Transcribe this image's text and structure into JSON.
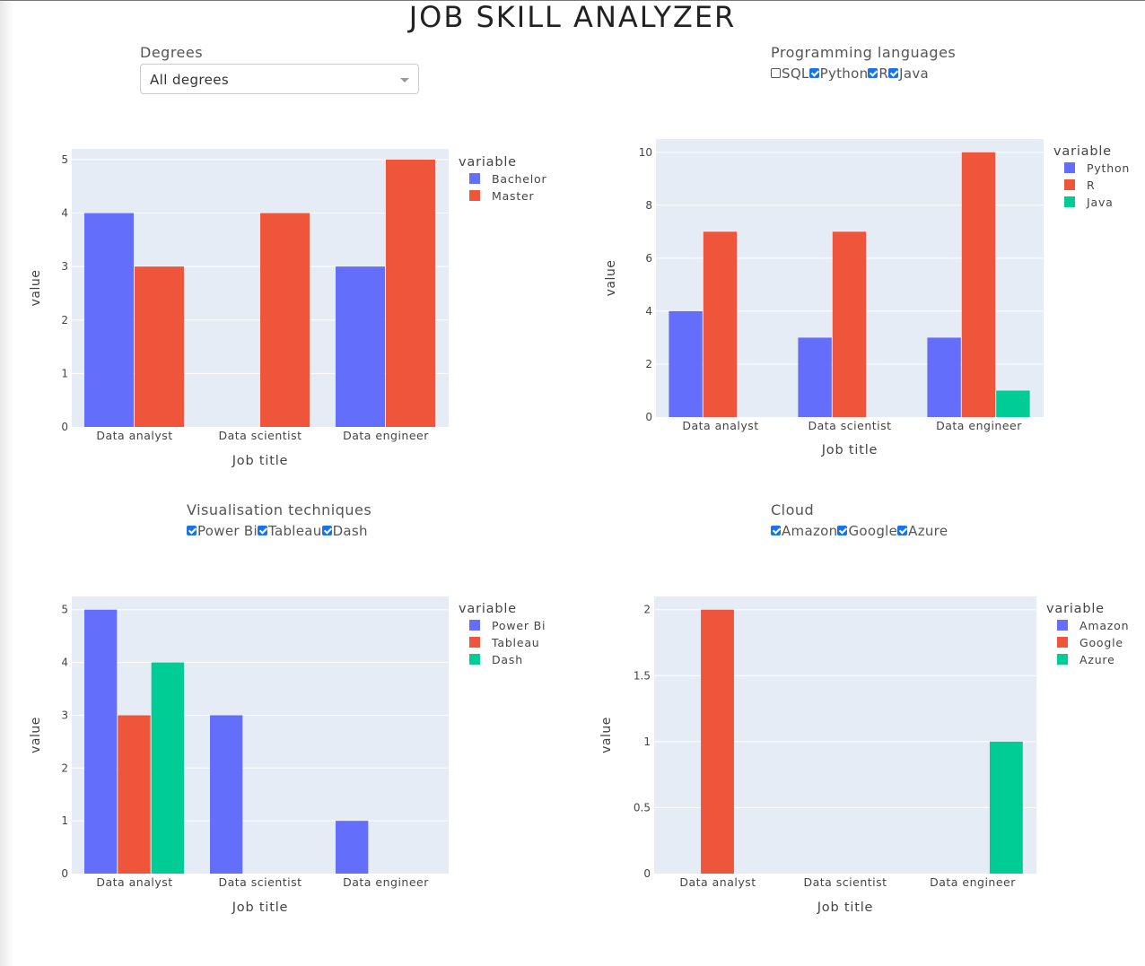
{
  "app": {
    "title": "JOB SKILL ANALYZER"
  },
  "controls": {
    "degrees": {
      "label": "Degrees",
      "value": "All degrees"
    },
    "languages": {
      "label": "Programming languages",
      "options": [
        {
          "label": "SQL",
          "checked": false
        },
        {
          "label": "Python",
          "checked": true
        },
        {
          "label": "R",
          "checked": true
        },
        {
          "label": "Java",
          "checked": true
        }
      ]
    },
    "visualisation": {
      "label": "Visualisation techniques",
      "options": [
        {
          "label": "Power Bi",
          "checked": true
        },
        {
          "label": "Tableau",
          "checked": true
        },
        {
          "label": "Dash",
          "checked": true
        }
      ]
    },
    "cloud": {
      "label": "Cloud",
      "options": [
        {
          "label": "Amazon",
          "checked": true
        },
        {
          "label": "Google",
          "checked": true
        },
        {
          "label": "Azure",
          "checked": true
        }
      ]
    }
  },
  "colors": {
    "blue": "#636efa",
    "red": "#ef553b",
    "green": "#00cc96",
    "plot_bg": "#e5ecf6",
    "grid": "#ffffff"
  },
  "chart_data": [
    {
      "type": "bar",
      "categories": [
        "Data analyst",
        "Data scientist",
        "Data engineer"
      ],
      "series": [
        {
          "name": "Bachelor",
          "values": [
            4,
            0,
            3
          ]
        },
        {
          "name": "Master",
          "values": [
            3,
            4,
            5
          ]
        }
      ],
      "xlabel": "Job title",
      "ylabel": "value",
      "legend_title": "variable",
      "ylim": [
        0,
        5.2
      ],
      "yticks": [
        0,
        1,
        2,
        3,
        4,
        5
      ],
      "grid": true,
      "legend": "right"
    },
    {
      "type": "bar",
      "categories": [
        "Data analyst",
        "Data scientist",
        "Data engineer"
      ],
      "series": [
        {
          "name": "Python",
          "values": [
            4,
            3,
            3
          ]
        },
        {
          "name": "R",
          "values": [
            7,
            7,
            10
          ]
        },
        {
          "name": "Java",
          "values": [
            0,
            0,
            1
          ]
        }
      ],
      "xlabel": "Job title",
      "ylabel": "value",
      "legend_title": "variable",
      "ylim": [
        0,
        10.5
      ],
      "yticks": [
        0,
        2,
        4,
        6,
        8,
        10
      ],
      "grid": true,
      "legend": "right"
    },
    {
      "type": "bar",
      "categories": [
        "Data analyst",
        "Data scientist",
        "Data engineer"
      ],
      "series": [
        {
          "name": "Power Bi",
          "values": [
            5,
            3,
            1
          ]
        },
        {
          "name": "Tableau",
          "values": [
            3,
            0,
            0
          ]
        },
        {
          "name": "Dash",
          "values": [
            4,
            0,
            0
          ]
        }
      ],
      "xlabel": "Job title",
      "ylabel": "value",
      "legend_title": "variable",
      "ylim": [
        0,
        5.25
      ],
      "yticks": [
        0,
        1,
        2,
        3,
        4,
        5
      ],
      "grid": true,
      "legend": "right"
    },
    {
      "type": "bar",
      "categories": [
        "Data analyst",
        "Data scientist",
        "Data engineer"
      ],
      "series": [
        {
          "name": "Amazon",
          "values": [
            0,
            0,
            0
          ]
        },
        {
          "name": "Google",
          "values": [
            2,
            0,
            0
          ]
        },
        {
          "name": "Azure",
          "values": [
            0,
            0,
            1
          ]
        }
      ],
      "xlabel": "Job title",
      "ylabel": "value",
      "legend_title": "variable",
      "ylim": [
        0,
        2.1
      ],
      "yticks": [
        0,
        0.5,
        1,
        1.5,
        2
      ],
      "grid": true,
      "legend": "right"
    }
  ]
}
